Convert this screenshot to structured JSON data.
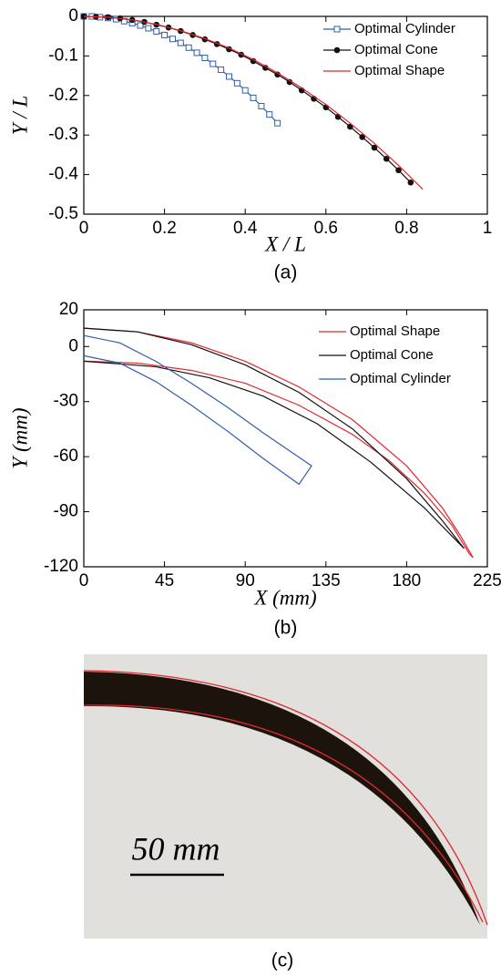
{
  "chart_data": [
    {
      "type": "line",
      "caption": "(a)",
      "xlabel": "X / L",
      "ylabel": "Y / L",
      "xlim": [
        0,
        1
      ],
      "ylim": [
        -0.5,
        0
      ],
      "xticks": [
        0,
        0.2,
        0.4,
        0.6,
        0.8,
        1
      ],
      "yticks": [
        0,
        -0.1,
        -0.2,
        -0.3,
        -0.4,
        -0.5
      ],
      "legend": "upper right",
      "series": [
        {
          "name": "Optimal Cylinder",
          "color": "#2f5fa8",
          "marker": "square",
          "x": [
            0,
            0.02,
            0.04,
            0.06,
            0.08,
            0.1,
            0.12,
            0.14,
            0.16,
            0.18,
            0.2,
            0.22,
            0.24,
            0.26,
            0.28,
            0.3,
            0.32,
            0.34,
            0.36,
            0.38,
            0.4,
            0.42,
            0.44,
            0.46,
            0.48
          ],
          "values": [
            0,
            0,
            -0.002,
            -0.004,
            -0.007,
            -0.012,
            -0.017,
            -0.023,
            -0.03,
            -0.038,
            -0.047,
            -0.057,
            -0.067,
            -0.079,
            -0.092,
            -0.105,
            -0.12,
            -0.135,
            -0.152,
            -0.169,
            -0.187,
            -0.206,
            -0.227,
            -0.248,
            -0.27
          ]
        },
        {
          "name": "Optimal Cone",
          "color": "#111111",
          "marker": "circle",
          "x": [
            0,
            0.03,
            0.06,
            0.09,
            0.12,
            0.15,
            0.18,
            0.21,
            0.24,
            0.27,
            0.3,
            0.33,
            0.36,
            0.39,
            0.42,
            0.45,
            0.48,
            0.51,
            0.54,
            0.57,
            0.6,
            0.63,
            0.66,
            0.69,
            0.72,
            0.75,
            0.78,
            0.81
          ],
          "values": [
            0,
            -0.001,
            -0.002,
            -0.005,
            -0.009,
            -0.014,
            -0.021,
            -0.028,
            -0.037,
            -0.047,
            -0.058,
            -0.07,
            -0.083,
            -0.097,
            -0.113,
            -0.13,
            -0.147,
            -0.166,
            -0.187,
            -0.208,
            -0.23,
            -0.254,
            -0.279,
            -0.305,
            -0.332,
            -0.36,
            -0.389,
            -0.42
          ]
        },
        {
          "name": "Optimal Shape",
          "color": "#e0282e",
          "marker": "none",
          "x": [
            0,
            0.06,
            0.12,
            0.18,
            0.24,
            0.3,
            0.36,
            0.42,
            0.48,
            0.54,
            0.6,
            0.66,
            0.72,
            0.78,
            0.84
          ],
          "values": [
            0,
            -0.002,
            -0.009,
            -0.02,
            -0.036,
            -0.056,
            -0.08,
            -0.109,
            -0.143,
            -0.181,
            -0.223,
            -0.27,
            -0.321,
            -0.377,
            -0.437
          ]
        }
      ]
    },
    {
      "type": "line",
      "caption": "(b)",
      "xlabel": "X (mm)",
      "ylabel": "Y (mm)",
      "xlim": [
        0,
        225
      ],
      "ylim": [
        -120,
        20
      ],
      "xticks": [
        0,
        45,
        90,
        135,
        180,
        225
      ],
      "yticks": [
        20,
        0,
        -30,
        -60,
        -90,
        -120
      ],
      "legend": "upper right",
      "series": [
        {
          "name": "Optimal Shape",
          "color": "#e0282e",
          "marker": "none",
          "x": [
            0,
            30,
            60,
            90,
            120,
            150,
            180,
            200,
            210,
            217,
            215,
            205,
            190,
            170,
            150,
            120,
            90,
            60,
            30,
            0
          ],
          "values": [
            10,
            8,
            2,
            -8,
            -22,
            -40,
            -65,
            -88,
            -103,
            -115,
            -113,
            -97,
            -80,
            -62,
            -48,
            -32,
            -20,
            -13,
            -9,
            -8
          ]
        },
        {
          "name": "Optimal Cone",
          "color": "#111111",
          "marker": "none",
          "x": [
            0,
            30,
            60,
            90,
            120,
            150,
            180,
            200,
            212,
            190,
            160,
            130,
            100,
            70,
            40,
            0
          ],
          "values": [
            10,
            8,
            1,
            -10,
            -25,
            -45,
            -72,
            -95,
            -110,
            -88,
            -63,
            -42,
            -27,
            -17,
            -11,
            -8
          ]
        },
        {
          "name": "Optimal Cylinder",
          "color": "#2f5fa8",
          "marker": "none",
          "x": [
            0,
            20,
            40,
            60,
            80,
            100,
            127,
            120,
            100,
            80,
            60,
            40,
            20,
            0
          ],
          "values": [
            6,
            2,
            -8,
            -20,
            -33,
            -47,
            -65,
            -75,
            -61,
            -46,
            -32,
            -19,
            -9,
            -5
          ]
        }
      ]
    }
  ],
  "photo": {
    "scale_label": "50 mm",
    "caption": "(c)"
  }
}
